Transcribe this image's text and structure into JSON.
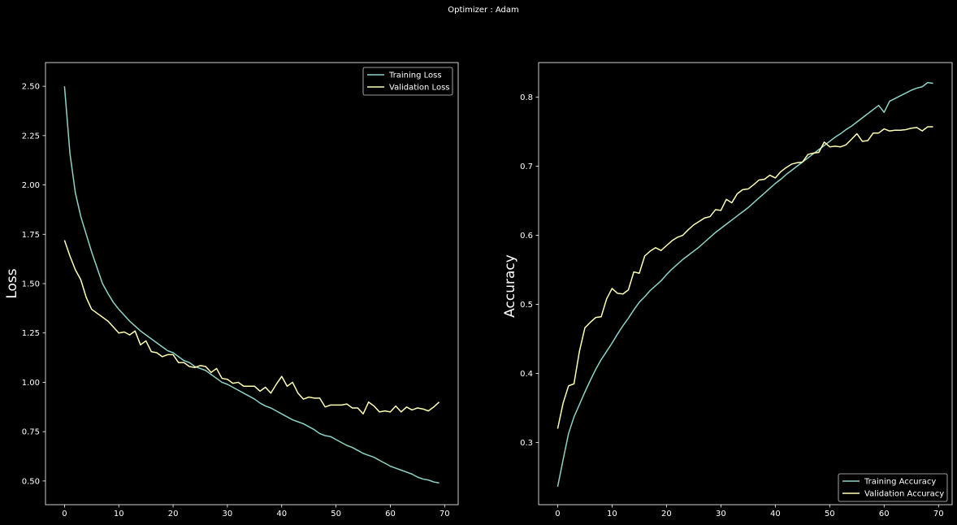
{
  "figure": {
    "suptitle": "Optimizer : Adam",
    "background": "#000000",
    "foreground": "#ffffff"
  },
  "chart_data": [
    {
      "type": "line",
      "title": "",
      "xlabel": "",
      "ylabel": "Loss",
      "xlim": [
        -3.5,
        72.5
      ],
      "ylim": [
        0.38,
        2.62
      ],
      "x_ticks": [
        0,
        10,
        20,
        30,
        40,
        50,
        60,
        70
      ],
      "y_ticks": [
        0.5,
        0.75,
        1.0,
        1.25,
        1.5,
        1.75,
        2.0,
        2.25,
        2.5
      ],
      "y_tick_labels": [
        "0.50",
        "0.75",
        "1.00",
        "1.25",
        "1.50",
        "1.75",
        "2.00",
        "2.25",
        "2.50"
      ],
      "grid": false,
      "legend_position": "upper-right",
      "series": [
        {
          "name": "Training Loss",
          "color": "#8dd3c7",
          "values": [
            2.5,
            2.16,
            1.96,
            1.84,
            1.75,
            1.66,
            1.58,
            1.5,
            1.45,
            1.405,
            1.37,
            1.34,
            1.31,
            1.285,
            1.26,
            1.24,
            1.22,
            1.2,
            1.18,
            1.16,
            1.15,
            1.13,
            1.11,
            1.1,
            1.08,
            1.07,
            1.06,
            1.04,
            1.02,
            1.0,
            0.99,
            0.975,
            0.96,
            0.945,
            0.93,
            0.915,
            0.895,
            0.88,
            0.87,
            0.855,
            0.84,
            0.825,
            0.81,
            0.8,
            0.79,
            0.775,
            0.76,
            0.74,
            0.73,
            0.725,
            0.71,
            0.695,
            0.68,
            0.67,
            0.655,
            0.64,
            0.63,
            0.62,
            0.605,
            0.59,
            0.575,
            0.565,
            0.555,
            0.545,
            0.535,
            0.52,
            0.51,
            0.505,
            0.495,
            0.49
          ]
        },
        {
          "name": "Validation Loss",
          "color": "#ffffb3",
          "values": [
            1.72,
            1.64,
            1.57,
            1.52,
            1.43,
            1.37,
            1.35,
            1.33,
            1.31,
            1.28,
            1.25,
            1.255,
            1.24,
            1.26,
            1.19,
            1.21,
            1.155,
            1.15,
            1.13,
            1.14,
            1.14,
            1.1,
            1.1,
            1.08,
            1.075,
            1.085,
            1.08,
            1.05,
            1.07,
            1.02,
            1.015,
            0.995,
            1.0,
            0.98,
            0.98,
            0.98,
            0.955,
            0.975,
            0.945,
            0.99,
            1.03,
            0.98,
            1.0,
            0.945,
            0.915,
            0.925,
            0.92,
            0.92,
            0.875,
            0.885,
            0.885,
            0.885,
            0.89,
            0.87,
            0.87,
            0.84,
            0.9,
            0.88,
            0.85,
            0.855,
            0.85,
            0.88,
            0.85,
            0.875,
            0.86,
            0.87,
            0.865,
            0.855,
            0.875,
            0.9
          ]
        }
      ]
    },
    {
      "type": "line",
      "title": "",
      "xlabel": "",
      "ylabel": "Accuracy",
      "xlim": [
        -3.5,
        72.5
      ],
      "ylim": [
        0.21,
        0.85
      ],
      "x_ticks": [
        0,
        10,
        20,
        30,
        40,
        50,
        60,
        70
      ],
      "y_ticks": [
        0.3,
        0.4,
        0.5,
        0.6,
        0.7,
        0.8
      ],
      "y_tick_labels": [
        "0.3",
        "0.4",
        "0.5",
        "0.6",
        "0.7",
        "0.8"
      ],
      "grid": false,
      "legend_position": "lower-right",
      "series": [
        {
          "name": "Training Accuracy",
          "color": "#8dd3c7",
          "values": [
            0.236,
            0.275,
            0.313,
            0.337,
            0.355,
            0.373,
            0.39,
            0.406,
            0.42,
            0.432,
            0.444,
            0.457,
            0.469,
            0.48,
            0.492,
            0.503,
            0.511,
            0.52,
            0.527,
            0.534,
            0.543,
            0.551,
            0.558,
            0.565,
            0.571,
            0.577,
            0.583,
            0.59,
            0.597,
            0.604,
            0.61,
            0.616,
            0.622,
            0.628,
            0.634,
            0.64,
            0.647,
            0.654,
            0.661,
            0.668,
            0.675,
            0.681,
            0.688,
            0.694,
            0.7,
            0.706,
            0.712,
            0.718,
            0.724,
            0.73,
            0.736,
            0.742,
            0.747,
            0.753,
            0.758,
            0.764,
            0.77,
            0.776,
            0.782,
            0.788,
            0.778,
            0.794,
            0.798,
            0.802,
            0.806,
            0.81,
            0.813,
            0.815,
            0.821,
            0.82
          ]
        },
        {
          "name": "Validation Accuracy",
          "color": "#ffffb3",
          "values": [
            0.32,
            0.357,
            0.382,
            0.385,
            0.432,
            0.466,
            0.474,
            0.481,
            0.482,
            0.508,
            0.523,
            0.516,
            0.515,
            0.521,
            0.547,
            0.545,
            0.57,
            0.577,
            0.582,
            0.578,
            0.585,
            0.592,
            0.597,
            0.6,
            0.608,
            0.615,
            0.62,
            0.625,
            0.627,
            0.637,
            0.636,
            0.652,
            0.647,
            0.66,
            0.666,
            0.667,
            0.673,
            0.68,
            0.681,
            0.687,
            0.683,
            0.692,
            0.698,
            0.703,
            0.705,
            0.706,
            0.717,
            0.719,
            0.72,
            0.735,
            0.728,
            0.729,
            0.728,
            0.731,
            0.739,
            0.747,
            0.736,
            0.737,
            0.748,
            0.748,
            0.754,
            0.751,
            0.752,
            0.752,
            0.753,
            0.755,
            0.756,
            0.751,
            0.757,
            0.757
          ]
        }
      ]
    }
  ]
}
